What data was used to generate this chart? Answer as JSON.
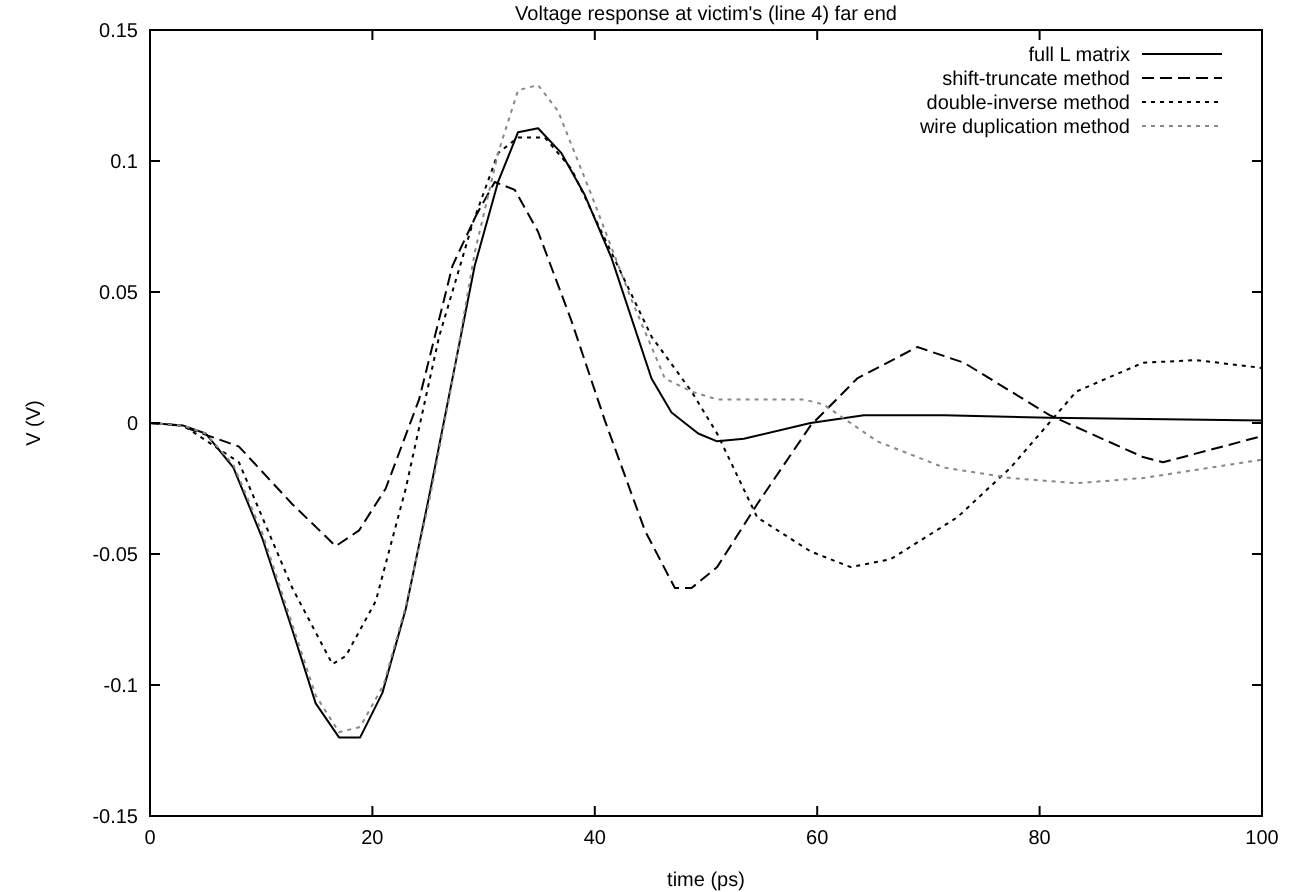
{
  "chart_data": {
    "type": "line",
    "title": "Voltage response at victim's (line 4) far end",
    "xlabel": "time (ps)",
    "ylabel": "V (V)",
    "xlim": [
      0,
      100
    ],
    "ylim": [
      -0.15,
      0.15
    ],
    "xticks": [
      0,
      20,
      40,
      60,
      80,
      100
    ],
    "yticks": [
      -0.15,
      -0.1,
      -0.05,
      0,
      0.05,
      0.1,
      0.15
    ],
    "grid": false,
    "legend": "top right",
    "series": [
      {
        "name": "full L matrix",
        "color": "#000000",
        "line_style": "solid",
        "x": [
          0,
          3,
          5,
          7.5,
          10.1,
          12.8,
          14.9,
          17,
          18.9,
          20.9,
          23,
          25.1,
          27.2,
          29.2,
          31.3,
          33.1,
          34.9,
          37,
          39.1,
          41.5,
          45.1,
          46.9,
          49.3,
          51,
          53.4,
          59.4,
          64.2,
          71.4,
          80.9,
          100
        ],
        "values": [
          0,
          -0.001,
          -0.004,
          -0.017,
          -0.044,
          -0.079,
          -0.107,
          -0.12,
          -0.12,
          -0.103,
          -0.071,
          -0.028,
          0.017,
          0.06,
          0.092,
          0.111,
          0.1125,
          0.103,
          0.087,
          0.063,
          0.017,
          0.004,
          -0.004,
          -0.007,
          -0.006,
          0,
          0.003,
          0.003,
          0.002,
          0.001
        ]
      },
      {
        "name": "shift-truncate method",
        "color": "#000000",
        "line_style": "dashed",
        "x": [
          0,
          2.7,
          8,
          12.8,
          16.7,
          18.8,
          21.2,
          24.2,
          27.2,
          29.3,
          31,
          32.8,
          34.9,
          37.9,
          40.9,
          44.5,
          47.2,
          48.7,
          51,
          54.6,
          59.4,
          63.6,
          69,
          73.2,
          80.9,
          89.3,
          91.1,
          100
        ],
        "values": [
          0,
          -0.001,
          -0.009,
          -0.031,
          -0.047,
          -0.041,
          -0.025,
          0.009,
          0.06,
          0.079,
          0.092,
          0.089,
          0.073,
          0.039,
          0.001,
          -0.041,
          -0.063,
          -0.063,
          -0.055,
          -0.031,
          -0.001,
          0.017,
          0.029,
          0.023,
          0.003,
          -0.013,
          -0.015,
          -0.005
        ]
      },
      {
        "name": "double-inverse method",
        "color": "#000000",
        "line_style": "dotted",
        "x": [
          0,
          3,
          8,
          12.8,
          16.4,
          17.6,
          20.3,
          23,
          26,
          29,
          31.3,
          33.1,
          35.5,
          37.9,
          41.5,
          45.1,
          48.7,
          51,
          54.6,
          59.4,
          63,
          66.6,
          72.6,
          77.4,
          83.3,
          89.3,
          94.1,
          100
        ],
        "values": [
          0,
          -0.001,
          -0.015,
          -0.063,
          -0.092,
          -0.089,
          -0.068,
          -0.025,
          0.033,
          0.076,
          0.103,
          0.109,
          0.109,
          0.097,
          0.065,
          0.033,
          0.012,
          -0.004,
          -0.036,
          -0.049,
          -0.055,
          -0.052,
          -0.036,
          -0.017,
          0.012,
          0.023,
          0.024,
          0.021
        ]
      },
      {
        "name": "wire duplication method",
        "color": "#888888",
        "line_style": "dotted",
        "x": [
          0,
          3,
          5,
          7.5,
          10.1,
          12.8,
          14.9,
          17,
          18.9,
          21,
          23,
          25.1,
          27.2,
          29.2,
          31.3,
          33.1,
          34.9,
          36.7,
          39.7,
          43.3,
          46.3,
          48.7,
          51,
          53.4,
          58.8,
          60.6,
          65.4,
          71.4,
          77.4,
          83.3,
          89.3,
          100
        ],
        "values": [
          0,
          -0.001,
          -0.004,
          -0.016,
          -0.042,
          -0.077,
          -0.104,
          -0.118,
          -0.116,
          -0.1,
          -0.07,
          -0.03,
          0.016,
          0.065,
          0.103,
          0.127,
          0.129,
          0.119,
          0.087,
          0.047,
          0.017,
          0.012,
          0.009,
          0.009,
          0.009,
          0.007,
          -0.007,
          -0.017,
          -0.021,
          -0.023,
          -0.021,
          -0.014
        ]
      }
    ]
  }
}
